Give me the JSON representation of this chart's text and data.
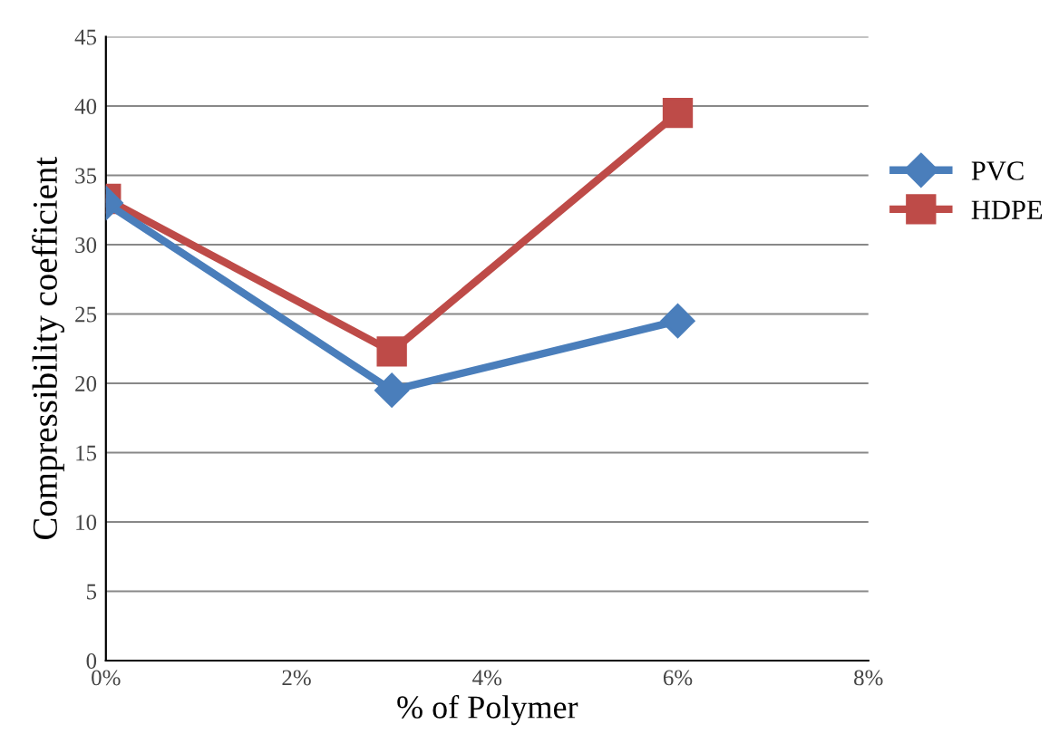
{
  "chart_data": {
    "type": "line",
    "xlabel": "% of Polymer",
    "ylabel": "Compressibility coefficient",
    "x": [
      0,
      3,
      6
    ],
    "series": [
      {
        "name": "PVC",
        "color": "#4a7ebb",
        "marker": "diamond",
        "values": [
          33,
          19.5,
          24.5
        ]
      },
      {
        "name": "HDPE",
        "color": "#be4b48",
        "marker": "square",
        "values": [
          33.3,
          22.3,
          39.5
        ]
      }
    ],
    "xlim": [
      0,
      8
    ],
    "xticks": [
      {
        "value": 0,
        "label": "0%"
      },
      {
        "value": 2,
        "label": "2%"
      },
      {
        "value": 4,
        "label": "4%"
      },
      {
        "value": 6,
        "label": "6%"
      },
      {
        "value": 8,
        "label": "8%"
      }
    ],
    "ylim": [
      0,
      45
    ],
    "yticks": [
      0,
      5,
      10,
      15,
      20,
      25,
      30,
      35,
      40,
      45
    ],
    "grid": "y",
    "legend": "right",
    "line_style": "solid"
  }
}
